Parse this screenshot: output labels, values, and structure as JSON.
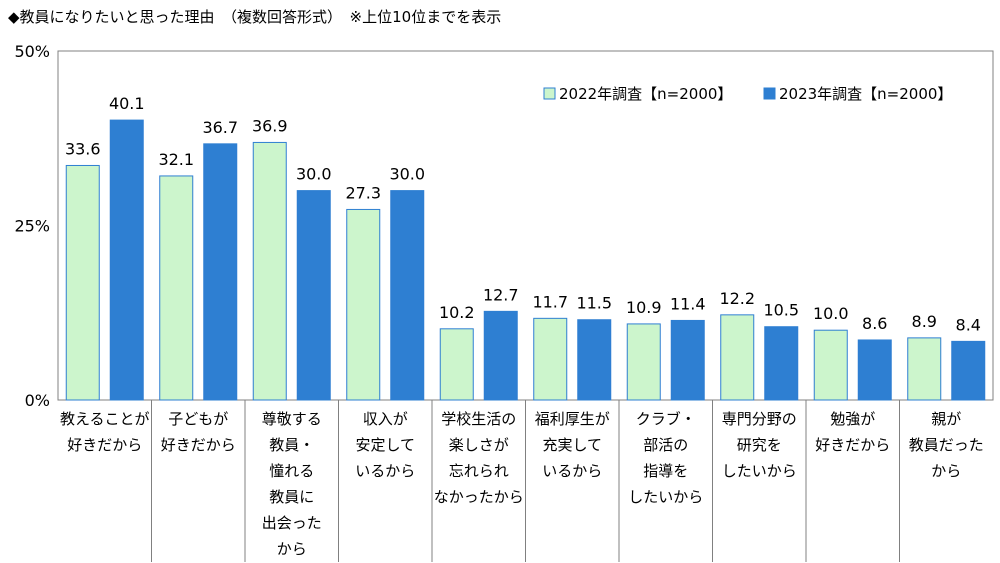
{
  "title": "◆教員になりたいと思った理由　（複数回答形式）　※上位10位までを表示",
  "chart_data": {
    "type": "bar",
    "title": "◆教員になりたいと思った理由　（複数回答形式）　※上位10位までを表示",
    "ylim": [
      0,
      50
    ],
    "yticks": [
      "0%",
      "25%",
      "50%"
    ],
    "grid": false,
    "legend_position": "top-right",
    "categories": [
      [
        "教えることが",
        "好きだから"
      ],
      [
        "子どもが",
        "好きだから"
      ],
      [
        "尊敬する",
        "教員・",
        "憧れる",
        "教員に",
        "出会った",
        "から"
      ],
      [
        "収入が",
        "安定して",
        "いるから"
      ],
      [
        "学校生活の",
        "楽しさが",
        "忘れられ",
        "なかったから"
      ],
      [
        "福利厚生が",
        "充実して",
        "いるから"
      ],
      [
        "クラブ・",
        "部活の",
        "指導を",
        "したいから"
      ],
      [
        "専門分野の",
        "研究を",
        "したいから"
      ],
      [
        "勉強が",
        "好きだから"
      ],
      [
        "親が",
        "教員だった",
        "から"
      ]
    ],
    "series": [
      {
        "name": "2022年調査【n=2000】",
        "color": "#ccf5cc",
        "stroke": "#2e7fd2",
        "values": [
          33.6,
          32.1,
          36.9,
          27.3,
          10.2,
          11.7,
          10.9,
          12.2,
          10.0,
          8.9
        ]
      },
      {
        "name": "2023年調査【n=2000】",
        "color": "#2e7fd2",
        "stroke": "#2e7fd2",
        "values": [
          40.1,
          36.7,
          30.0,
          30.0,
          12.7,
          11.5,
          11.4,
          10.5,
          8.6,
          8.4
        ]
      }
    ]
  }
}
